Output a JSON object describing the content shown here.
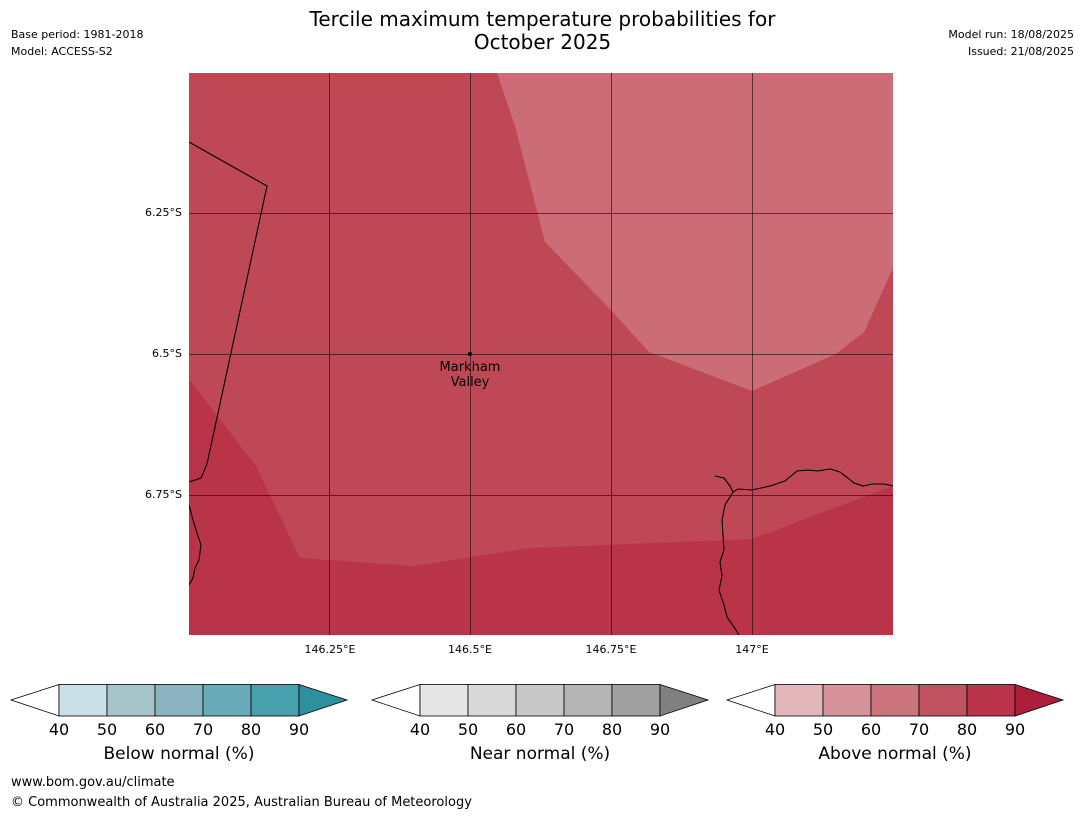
{
  "title_line1": "Tercile maximum temperature probabilities for",
  "title_line2": "October 2025",
  "base_period": "Base period: 1981-2018",
  "model": "Model: ACCESS-S2",
  "model_run": "Model run: 18/08/2025",
  "issued": "Issued: 21/08/2025",
  "map": {
    "lat_labels": [
      "6.25°S",
      "6.5°S",
      "6.75°S"
    ],
    "lon_labels": [
      "146.25°E",
      "146.5°E",
      "146.75°E",
      "147°E"
    ],
    "place": {
      "line1": "Markham",
      "line2": "Valley"
    },
    "colors": {
      "band_50_60": "#cb6c76",
      "band_60_70": "#bf4856",
      "band_70_80": "#ba3449",
      "line": "#000000"
    }
  },
  "legends": [
    {
      "title": "Below normal (%)",
      "ticks": [
        "40",
        "50",
        "60",
        "70",
        "80",
        "90"
      ],
      "colors": [
        "#c9e1e6",
        "#a6c5ca",
        "#89b4c0",
        "#6aabb9",
        "#46a0ae",
        "#2e8f9f"
      ]
    },
    {
      "title": "Near normal (%)",
      "ticks": [
        "40",
        "50",
        "60",
        "70",
        "80",
        "90"
      ],
      "colors": [
        "#e6e6e6",
        "#d8d8d8",
        "#c8c8c8",
        "#b5b5b5",
        "#a0a0a0",
        "#808080"
      ]
    },
    {
      "title": "Above normal (%)",
      "ticks": [
        "40",
        "50",
        "60",
        "70",
        "80",
        "90"
      ],
      "colors": [
        "#e2b7bc",
        "#d7939b",
        "#cb747d",
        "#c05260",
        "#b9334a",
        "#ae1d3a"
      ]
    }
  ],
  "footer_url": "www.bom.gov.au/climate",
  "footer_copyright": "© Commonwealth of Australia 2025, Australian Bureau of Meteorology"
}
